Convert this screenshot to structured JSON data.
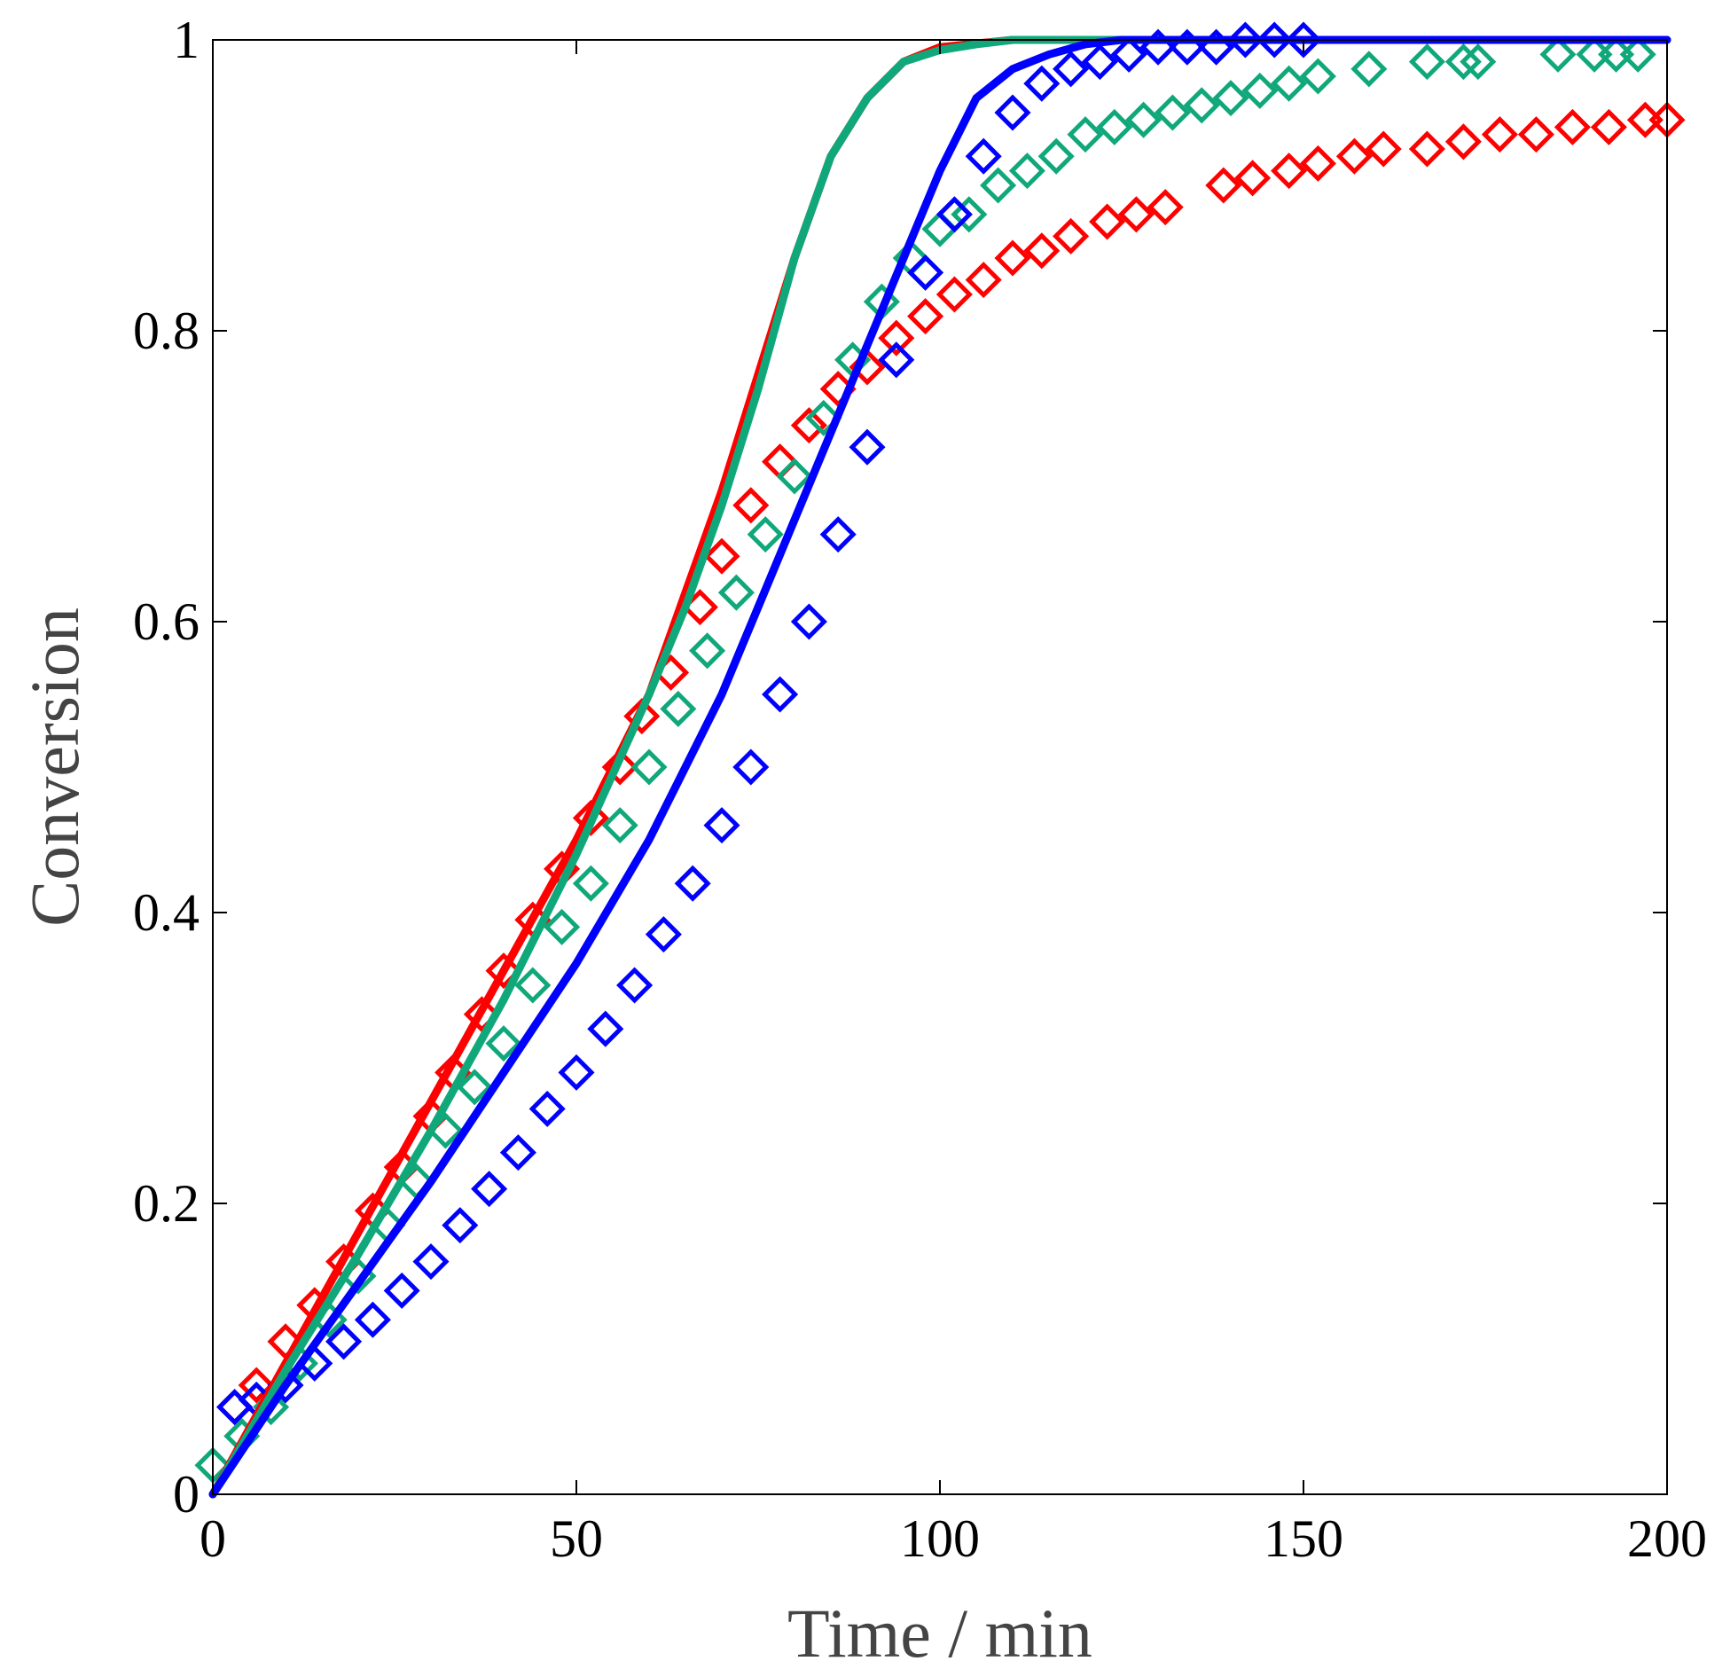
{
  "chart_data": {
    "type": "scatter",
    "title": "",
    "xlabel": "Time / min",
    "ylabel": "Conversion",
    "xlim": [
      0,
      200
    ],
    "ylim": [
      0,
      1
    ],
    "grid": false,
    "xticks": [
      0,
      50,
      100,
      150,
      200
    ],
    "xtick_labels": [
      "0",
      "50",
      "100",
      "150",
      "200"
    ],
    "yticks": [
      0,
      0.2,
      0.4,
      0.6,
      0.8,
      1
    ],
    "ytick_labels": [
      "0",
      "0.2",
      "0.4",
      "0.6",
      "0.8",
      "1"
    ],
    "series": [
      {
        "name": "red",
        "color": "#ff0000",
        "experimental": {
          "x": [
            3,
            6,
            10,
            14,
            18,
            22,
            26,
            30,
            33,
            37,
            40,
            44,
            48,
            52,
            56,
            59,
            63,
            67,
            70,
            74,
            78,
            82,
            86,
            90,
            94,
            98,
            102,
            106,
            110,
            114,
            118,
            123,
            127,
            131,
            139,
            143,
            148,
            152,
            157,
            161,
            167,
            172,
            177,
            182,
            187,
            192,
            197,
            200
          ],
          "y": [
            0.06,
            0.075,
            0.105,
            0.13,
            0.16,
            0.195,
            0.225,
            0.26,
            0.29,
            0.33,
            0.36,
            0.395,
            0.43,
            0.465,
            0.5,
            0.535,
            0.565,
            0.61,
            0.645,
            0.68,
            0.71,
            0.735,
            0.76,
            0.775,
            0.795,
            0.81,
            0.825,
            0.835,
            0.85,
            0.855,
            0.865,
            0.875,
            0.88,
            0.885,
            0.9,
            0.905,
            0.91,
            0.915,
            0.92,
            0.925,
            0.925,
            0.93,
            0.935,
            0.935,
            0.94,
            0.94,
            0.945,
            0.945
          ]
        },
        "model": {
          "x": [
            0,
            10,
            20,
            30,
            40,
            50,
            60,
            65,
            70,
            75,
            80,
            85,
            90,
            95,
            100,
            110,
            120,
            200
          ],
          "y": [
            0,
            0.09,
            0.18,
            0.27,
            0.36,
            0.45,
            0.55,
            0.62,
            0.69,
            0.77,
            0.85,
            0.92,
            0.96,
            0.985,
            0.995,
            1,
            1,
            1
          ]
        }
      },
      {
        "name": "green",
        "color": "#10a87a",
        "experimental": {
          "x": [
            0,
            4,
            8,
            12,
            16,
            20,
            24,
            28,
            32,
            36,
            40,
            44,
            48,
            52,
            56,
            60,
            64,
            68,
            72,
            76,
            80,
            84,
            88,
            92,
            96,
            100,
            104,
            108,
            112,
            116,
            120,
            124,
            128,
            132,
            136,
            140,
            144,
            148,
            152,
            159,
            167,
            172,
            174,
            185,
            190,
            193,
            196
          ],
          "y": [
            0.02,
            0.04,
            0.06,
            0.09,
            0.12,
            0.15,
            0.185,
            0.215,
            0.25,
            0.28,
            0.31,
            0.35,
            0.39,
            0.42,
            0.46,
            0.5,
            0.54,
            0.58,
            0.62,
            0.66,
            0.7,
            0.74,
            0.78,
            0.82,
            0.85,
            0.87,
            0.88,
            0.9,
            0.91,
            0.92,
            0.935,
            0.94,
            0.945,
            0.95,
            0.955,
            0.96,
            0.965,
            0.97,
            0.975,
            0.98,
            0.985,
            0.985,
            0.985,
            0.99,
            0.99,
            0.99,
            0.99
          ]
        },
        "model": {
          "x": [
            0,
            10,
            20,
            30,
            40,
            50,
            60,
            65,
            70,
            75,
            80,
            85,
            90,
            95,
            100,
            105,
            110,
            120,
            200
          ],
          "y": [
            0,
            0.085,
            0.165,
            0.25,
            0.34,
            0.44,
            0.55,
            0.61,
            0.68,
            0.76,
            0.85,
            0.92,
            0.96,
            0.985,
            0.993,
            0.997,
            1,
            1,
            1
          ]
        }
      },
      {
        "name": "blue",
        "color": "#0000ff",
        "experimental": {
          "x": [
            3,
            6,
            10,
            14,
            18,
            22,
            26,
            30,
            34,
            38,
            42,
            46,
            50,
            54,
            58,
            62,
            66,
            70,
            74,
            78,
            82,
            86,
            90,
            94,
            98,
            102,
            106,
            110,
            114,
            118,
            122,
            126,
            130,
            134,
            138,
            142,
            146,
            150
          ],
          "y": [
            0.06,
            0.065,
            0.075,
            0.09,
            0.105,
            0.12,
            0.14,
            0.16,
            0.185,
            0.21,
            0.235,
            0.265,
            0.29,
            0.32,
            0.35,
            0.385,
            0.42,
            0.46,
            0.5,
            0.55,
            0.6,
            0.66,
            0.72,
            0.78,
            0.84,
            0.88,
            0.92,
            0.95,
            0.97,
            0.98,
            0.985,
            0.99,
            0.995,
            0.995,
            0.995,
            1,
            1,
            1
          ]
        },
        "model": {
          "x": [
            0,
            10,
            20,
            30,
            40,
            50,
            60,
            70,
            75,
            80,
            85,
            90,
            95,
            100,
            105,
            110,
            115,
            120,
            125,
            130,
            200
          ],
          "y": [
            0,
            0.075,
            0.145,
            0.215,
            0.29,
            0.365,
            0.45,
            0.55,
            0.61,
            0.67,
            0.73,
            0.79,
            0.85,
            0.91,
            0.96,
            0.98,
            0.99,
            0.997,
            1,
            1,
            1
          ]
        }
      }
    ]
  }
}
